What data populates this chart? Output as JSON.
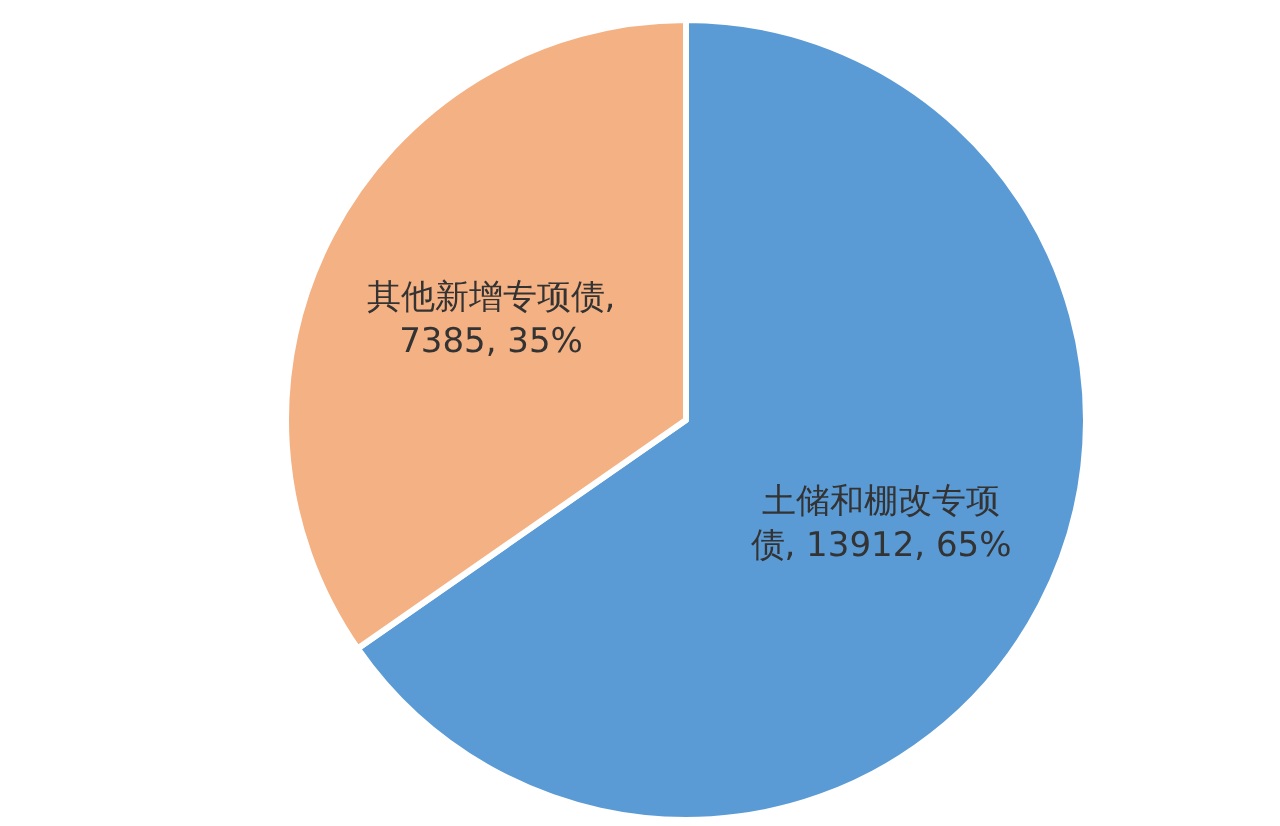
{
  "chart_data": {
    "type": "pie",
    "categories": [
      "土储和棚改专项债",
      "其他新增专项债"
    ],
    "values": [
      13912,
      7385
    ],
    "value_labels": [
      ", 13912, 65%",
      ", 7385, 35%"
    ],
    "colors": [
      "#5b9bd5",
      "#f4b183"
    ]
  }
}
